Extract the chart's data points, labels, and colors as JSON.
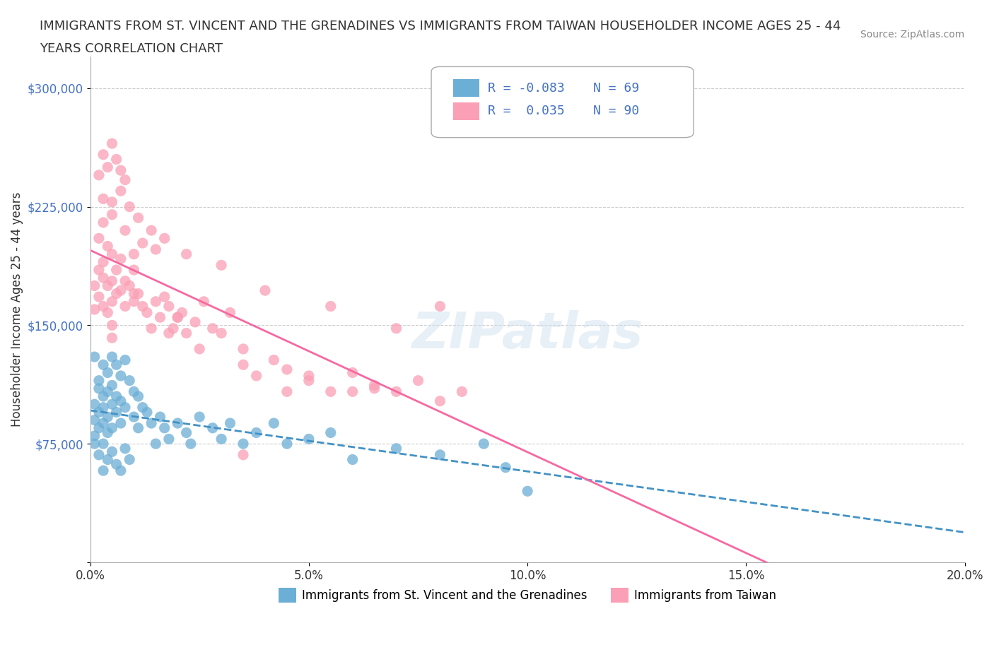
{
  "title_line1": "IMMIGRANTS FROM ST. VINCENT AND THE GRENADINES VS IMMIGRANTS FROM TAIWAN HOUSEHOLDER INCOME AGES 25 - 44",
  "title_line2": "YEARS CORRELATION CHART",
  "source": "Source: ZipAtlas.com",
  "xlabel": "",
  "ylabel": "Householder Income Ages 25 - 44 years",
  "xlim": [
    0.0,
    0.2
  ],
  "ylim": [
    0,
    320000
  ],
  "yticks": [
    0,
    75000,
    150000,
    225000,
    300000
  ],
  "ytick_labels": [
    "",
    "$75,000",
    "$150,000",
    "$225,000",
    "$300,000"
  ],
  "xticks": [
    0.0,
    0.05,
    0.1,
    0.15,
    0.2
  ],
  "xtick_labels": [
    "0.0%",
    "5.0%",
    "10.0%",
    "15.0%",
    "20.0%"
  ],
  "legend_r1": "R = -0.083",
  "legend_n1": "N = 69",
  "legend_r2": "R =  0.035",
  "legend_n2": "N = 90",
  "color_blue": "#6baed6",
  "color_pink": "#fa9fb5",
  "color_blue_line": "#4292c6",
  "color_pink_line": "#f768a1",
  "background_color": "#ffffff",
  "watermark": "ZIPatlas",
  "blue_scatter_x": [
    0.001,
    0.001,
    0.001,
    0.001,
    0.002,
    0.002,
    0.002,
    0.002,
    0.003,
    0.003,
    0.003,
    0.003,
    0.003,
    0.004,
    0.004,
    0.004,
    0.004,
    0.005,
    0.005,
    0.005,
    0.005,
    0.006,
    0.006,
    0.006,
    0.007,
    0.007,
    0.007,
    0.008,
    0.008,
    0.009,
    0.01,
    0.01,
    0.011,
    0.011,
    0.012,
    0.013,
    0.014,
    0.015,
    0.016,
    0.017,
    0.018,
    0.02,
    0.022,
    0.023,
    0.025,
    0.028,
    0.03,
    0.032,
    0.035,
    0.038,
    0.042,
    0.045,
    0.05,
    0.055,
    0.06,
    0.07,
    0.08,
    0.09,
    0.095,
    0.1,
    0.001,
    0.002,
    0.003,
    0.004,
    0.005,
    0.006,
    0.007,
    0.008,
    0.009
  ],
  "blue_scatter_y": [
    130000,
    100000,
    90000,
    80000,
    115000,
    110000,
    95000,
    85000,
    125000,
    105000,
    98000,
    88000,
    75000,
    120000,
    108000,
    92000,
    82000,
    130000,
    112000,
    100000,
    85000,
    125000,
    105000,
    95000,
    118000,
    102000,
    88000,
    128000,
    98000,
    115000,
    108000,
    92000,
    105000,
    85000,
    98000,
    95000,
    88000,
    75000,
    92000,
    85000,
    78000,
    88000,
    82000,
    75000,
    92000,
    85000,
    78000,
    88000,
    75000,
    82000,
    88000,
    75000,
    78000,
    82000,
    65000,
    72000,
    68000,
    75000,
    60000,
    45000,
    75000,
    68000,
    58000,
    65000,
    70000,
    62000,
    58000,
    72000,
    65000
  ],
  "pink_scatter_x": [
    0.001,
    0.001,
    0.002,
    0.002,
    0.003,
    0.003,
    0.003,
    0.004,
    0.004,
    0.004,
    0.005,
    0.005,
    0.005,
    0.005,
    0.006,
    0.006,
    0.007,
    0.007,
    0.008,
    0.008,
    0.009,
    0.01,
    0.01,
    0.011,
    0.012,
    0.013,
    0.014,
    0.015,
    0.016,
    0.017,
    0.018,
    0.019,
    0.02,
    0.021,
    0.022,
    0.024,
    0.026,
    0.028,
    0.03,
    0.032,
    0.035,
    0.038,
    0.042,
    0.045,
    0.05,
    0.055,
    0.06,
    0.065,
    0.07,
    0.075,
    0.08,
    0.085,
    0.002,
    0.003,
    0.004,
    0.005,
    0.006,
    0.007,
    0.008,
    0.002,
    0.003,
    0.005,
    0.008,
    0.01,
    0.012,
    0.015,
    0.018,
    0.025,
    0.035,
    0.045,
    0.06,
    0.08,
    0.003,
    0.005,
    0.007,
    0.009,
    0.011,
    0.014,
    0.017,
    0.022,
    0.03,
    0.04,
    0.055,
    0.07,
    0.02,
    0.035,
    0.05,
    0.065,
    0.005,
    0.01
  ],
  "pink_scatter_y": [
    175000,
    160000,
    185000,
    168000,
    190000,
    180000,
    162000,
    200000,
    175000,
    158000,
    195000,
    178000,
    165000,
    150000,
    185000,
    170000,
    192000,
    172000,
    178000,
    162000,
    175000,
    185000,
    165000,
    170000,
    162000,
    158000,
    148000,
    165000,
    155000,
    168000,
    162000,
    148000,
    155000,
    158000,
    145000,
    152000,
    165000,
    148000,
    145000,
    158000,
    125000,
    118000,
    128000,
    122000,
    115000,
    108000,
    120000,
    112000,
    108000,
    115000,
    102000,
    108000,
    245000,
    258000,
    250000,
    265000,
    255000,
    248000,
    242000,
    205000,
    215000,
    220000,
    210000,
    195000,
    202000,
    198000,
    145000,
    135000,
    68000,
    108000,
    108000,
    162000,
    230000,
    228000,
    235000,
    225000,
    218000,
    210000,
    205000,
    195000,
    188000,
    172000,
    162000,
    148000,
    155000,
    135000,
    118000,
    110000,
    142000,
    170000
  ]
}
